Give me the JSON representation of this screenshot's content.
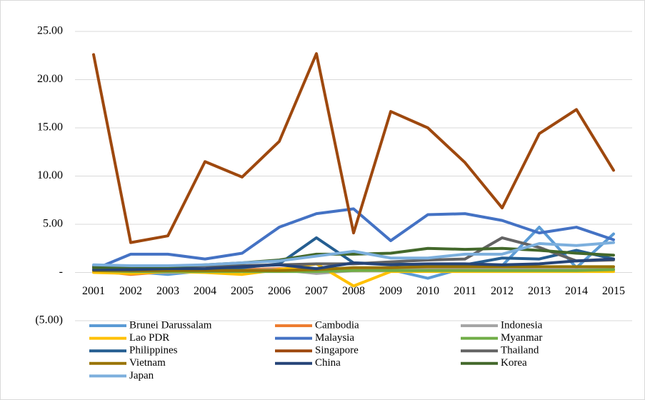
{
  "chart_data": {
    "type": "line",
    "categories": [
      "2001",
      "2002",
      "2003",
      "2004",
      "2005",
      "2006",
      "2007",
      "2008",
      "2009",
      "2010",
      "2011",
      "2012",
      "2013",
      "2014",
      "2015"
    ],
    "ylim": [
      -5,
      25
    ],
    "yticks": [
      {
        "value": -5,
        "label": "(5.00)"
      },
      {
        "value": 0,
        "label": "-"
      },
      {
        "value": 5,
        "label": "5.00"
      },
      {
        "value": 10,
        "label": "10.00"
      },
      {
        "value": 15,
        "label": "15.00"
      },
      {
        "value": 20,
        "label": "20.00"
      },
      {
        "value": 25,
        "label": "25.00"
      }
    ],
    "grid": true,
    "legend": "bottom",
    "series": [
      {
        "name": "Brunei Darussalam",
        "color": "#5b9bd5",
        "values": [
          0.7,
          0.1,
          -0.2,
          0.2,
          0.2,
          0.3,
          0.2,
          0.2,
          0.3,
          -0.6,
          0.5,
          0.7,
          4.7,
          0.5,
          4.0
        ]
      },
      {
        "name": "Cambodia",
        "color": "#ed7d31",
        "values": [
          0.2,
          -0.2,
          0.1,
          0.1,
          0.3,
          0.4,
          0.3,
          0.2,
          0.2,
          0.3,
          0.3,
          0.3,
          0.3,
          0.3,
          0.3
        ]
      },
      {
        "name": "Indonesia",
        "color": "#a5a5a5",
        "values": [
          0.1,
          0.0,
          0.0,
          0.1,
          0.2,
          0.3,
          -0.1,
          0.2,
          0.3,
          0.5,
          0.5,
          0.4,
          0.3,
          0.3,
          0.4
        ]
      },
      {
        "name": "Lao PDR",
        "color": "#ffc000",
        "values": [
          0.0,
          -0.1,
          0.1,
          0.0,
          -0.2,
          0.3,
          0.9,
          -1.4,
          0.1,
          0.1,
          0.1,
          0.1,
          0.1,
          0.1,
          0.1
        ]
      },
      {
        "name": "Malaysia",
        "color": "#4472c4",
        "values": [
          0.3,
          1.9,
          1.9,
          1.4,
          2.0,
          4.7,
          6.1,
          6.6,
          3.3,
          6.0,
          6.1,
          5.4,
          4.1,
          4.7,
          3.4
        ]
      },
      {
        "name": "Myanmar",
        "color": "#70ad47",
        "values": [
          0.2,
          0.1,
          0.1,
          0.1,
          0.1,
          0.1,
          0.1,
          0.2,
          0.2,
          0.2,
          0.2,
          0.2,
          0.2,
          0.2,
          0.3
        ]
      },
      {
        "name": "Philippines",
        "color": "#255e91",
        "values": [
          0.5,
          0.2,
          0.2,
          0.3,
          0.5,
          0.9,
          3.6,
          1.0,
          0.9,
          0.8,
          0.8,
          1.5,
          1.4,
          2.3,
          1.4
        ]
      },
      {
        "name": "Singapore",
        "color": "#9e480e",
        "values": [
          22.6,
          3.1,
          3.8,
          11.5,
          9.9,
          13.6,
          22.7,
          4.1,
          16.7,
          15.0,
          11.4,
          6.7,
          14.4,
          16.9,
          10.6
        ]
      },
      {
        "name": "Thailand",
        "color": "#636363",
        "values": [
          0.6,
          0.5,
          0.6,
          0.7,
          0.7,
          0.8,
          0.9,
          0.9,
          1.1,
          1.3,
          1.4,
          3.6,
          2.6,
          1.2,
          1.3
        ]
      },
      {
        "name": "Vietnam",
        "color": "#997300",
        "values": [
          0.2,
          0.2,
          0.2,
          0.2,
          0.2,
          0.2,
          0.3,
          0.5,
          0.5,
          0.6,
          0.6,
          0.6,
          0.6,
          0.6,
          0.6
        ]
      },
      {
        "name": "China",
        "color": "#264478",
        "values": [
          0.3,
          0.3,
          0.4,
          0.4,
          0.6,
          0.8,
          0.4,
          1.0,
          0.8,
          0.9,
          0.9,
          0.8,
          0.9,
          1.2,
          1.4
        ]
      },
      {
        "name": "Korea",
        "color": "#43682b",
        "values": [
          0.5,
          0.6,
          0.6,
          0.8,
          1.0,
          1.3,
          1.9,
          1.9,
          2.0,
          2.5,
          2.4,
          2.5,
          2.3,
          2.0,
          1.8
        ]
      },
      {
        "name": "Japan",
        "color": "#7cafdd",
        "values": [
          0.8,
          0.7,
          0.7,
          0.8,
          1.0,
          1.2,
          1.7,
          2.2,
          1.5,
          1.5,
          1.9,
          1.9,
          3.0,
          2.8,
          3.1
        ]
      }
    ]
  }
}
